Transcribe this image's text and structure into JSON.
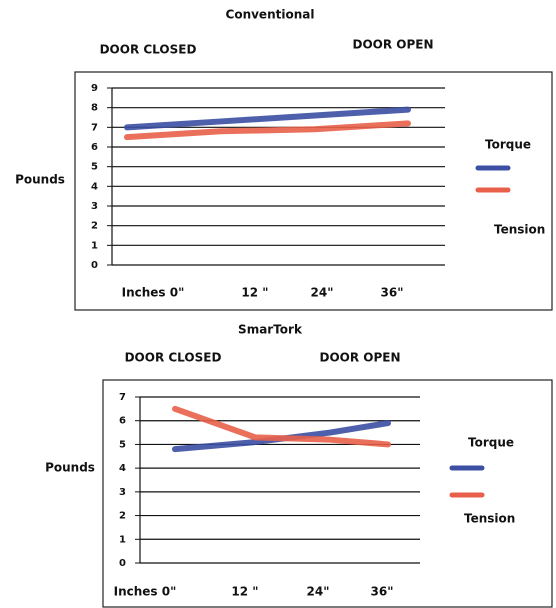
{
  "chart_data": [
    {
      "type": "line",
      "title": "Conventional",
      "annotations": [
        "DOOR CLOSED",
        "DOOR OPEN"
      ],
      "ylabel": "Pounds",
      "categories": [
        "Inches 0\"",
        "12 \"",
        "24\"",
        "36\""
      ],
      "series": [
        {
          "name": "Torque",
          "color": "#3b4fa3",
          "values": [
            7.0,
            7.3,
            7.6,
            7.9
          ]
        },
        {
          "name": "Tension",
          "color": "#e8604a",
          "values": [
            6.5,
            6.8,
            6.9,
            7.2
          ]
        }
      ],
      "ylim": [
        0,
        9
      ],
      "yticks": [
        0,
        1,
        2,
        3,
        4,
        5,
        6,
        7,
        8,
        9
      ],
      "grid": true
    },
    {
      "type": "line",
      "title": "SmarTork",
      "annotations": [
        "DOOR CLOSED",
        "DOOR OPEN"
      ],
      "ylabel": "Pounds",
      "categories": [
        "Inches 0\"",
        "12 \"",
        "24\"",
        "36\""
      ],
      "series": [
        {
          "name": "Torque",
          "color": "#3b4fa3",
          "values": [
            4.8,
            5.1,
            5.5,
            5.9
          ]
        },
        {
          "name": "Tension",
          "color": "#e8604a",
          "values": [
            6.5,
            5.3,
            5.2,
            5.0
          ]
        }
      ],
      "ylim": [
        0,
        7
      ],
      "yticks": [
        0,
        1,
        2,
        3,
        4,
        5,
        6,
        7
      ],
      "grid": true
    }
  ]
}
